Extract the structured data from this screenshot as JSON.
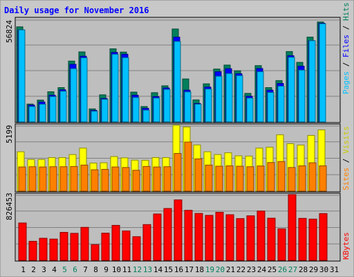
{
  "chart_data": {
    "type": "bar",
    "title": "Daily usage for November 2016",
    "x": [
      "1",
      "2",
      "3",
      "4",
      "5",
      "6",
      "7",
      "8",
      "9",
      "10",
      "11",
      "12",
      "13",
      "14",
      "15",
      "16",
      "17",
      "18",
      "19",
      "20",
      "21",
      "22",
      "23",
      "24",
      "25",
      "26",
      "27",
      "28",
      "29",
      "30",
      "31"
    ],
    "weekend_days": [
      "5",
      "6",
      "12",
      "13",
      "19",
      "20",
      "26",
      "27"
    ],
    "panels": [
      {
        "name": "top",
        "max_label": "56824",
        "max": 56824,
        "right_label": {
          "pages": "Pages",
          "sep1": " / ",
          "files": "Files",
          "sep2": " / ",
          "hits": "Hits"
        },
        "series": [
          {
            "name": "Hits",
            "color": "#00805c",
            "values": [
              52700,
              9900,
              12100,
              16700,
              19000,
              33700,
              38800,
              7200,
              15000,
              40500,
              38700,
              16500,
              8500,
              16200,
              20000,
              51500,
              23800,
              12200,
              21100,
              29300,
              31500,
              28300,
              15800,
              31200,
              19000,
              22900,
              39000,
              33000,
              47000,
              55400,
              0
            ]
          },
          {
            "name": "Files",
            "color": "#0000ff",
            "values": [
              51000,
              9300,
              11000,
              14800,
              17800,
              31900,
              36400,
              6400,
              13000,
              38500,
              37500,
              14800,
              7500,
              14000,
              18800,
              47000,
              17600,
              10200,
              19300,
              27800,
              29500,
              26700,
              14200,
              29600,
              17600,
              21300,
              36700,
              30900,
              45000,
              54700,
              0
            ]
          },
          {
            "name": "Pages",
            "color": "#00c0ff",
            "values": [
              51000,
              8500,
              9800,
              14000,
              17000,
              29500,
              35500,
              5900,
              12500,
              37500,
              35600,
              13500,
              6500,
              13200,
              18000,
              44600,
              16600,
              9800,
              18200,
              25300,
              26800,
              25600,
              13200,
              27800,
              16300,
              19800,
              35800,
              28700,
              45000,
              54400,
              0
            ]
          }
        ]
      },
      {
        "name": "middle",
        "max_label": "5199",
        "max": 5199,
        "right_label": {
          "sites": "Sites",
          "sep": " / ",
          "visits": "Visits"
        },
        "series": [
          {
            "name": "Visits",
            "color": "#ffff00",
            "values": [
              3110,
              2500,
              2500,
              2650,
              2650,
              2890,
              3400,
              2220,
              2240,
              2730,
              2630,
              2450,
              2440,
              2650,
              2650,
              5199,
              5070,
              3650,
              3110,
              2890,
              3030,
              2790,
              2770,
              3400,
              3470,
              4450,
              3750,
              3640,
              4400,
              4840,
              0
            ]
          },
          {
            "name": "Sites",
            "color": "#ff8000",
            "values": [
              1910,
              1930,
              1910,
              1930,
              1930,
              1950,
              2060,
              1690,
              1720,
              1910,
              1870,
              1650,
              1950,
              1910,
              1930,
              2980,
              3880,
              2550,
              2060,
              1970,
              2000,
              1970,
              1930,
              1990,
              2260,
              2340,
              1870,
              2000,
              2240,
              2000,
              0
            ]
          }
        ]
      },
      {
        "name": "bottom",
        "max_label": "826453",
        "max": 826453,
        "right_label": {
          "kbytes": "KBytes"
        },
        "series": [
          {
            "name": "KBytes",
            "color": "#ff0000",
            "values": [
              470000,
              240000,
              278000,
              268000,
              352000,
              340000,
              415000,
              198000,
              342000,
              440000,
              370000,
              298000,
              450000,
              583000,
              652000,
              760000,
              629000,
              590000,
              566000,
              604000,
              574000,
              525000,
              560000,
              620000,
              530000,
              397000,
              826453,
              528000,
              519000,
              588000,
              0
            ]
          }
        ]
      }
    ]
  },
  "colors": {
    "background": "#c8c8c8",
    "panel": "#bebebe",
    "grid": "#808080",
    "title": "#0000ff",
    "weekday_label": "#000000",
    "weekend_label": "#00805c"
  }
}
